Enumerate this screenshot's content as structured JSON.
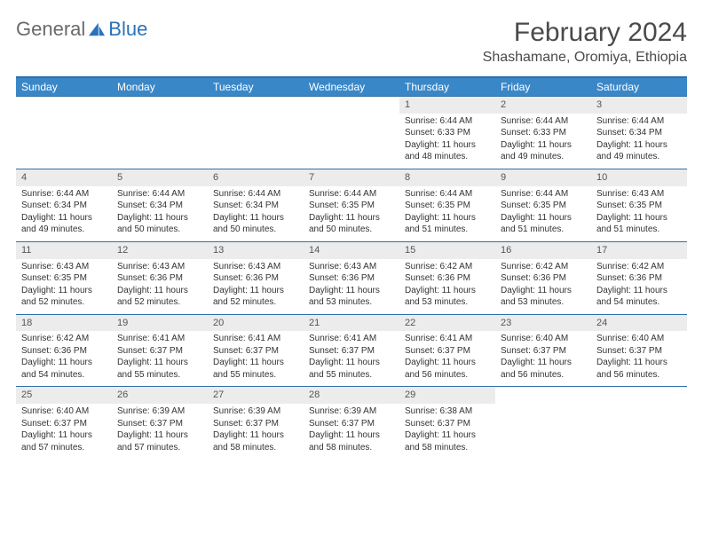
{
  "brand": {
    "part1": "General",
    "part2": "Blue"
  },
  "title": "February 2024",
  "location": "Shashamane, Oromiya, Ethiopia",
  "colors": {
    "header_bg": "#3a87c8",
    "header_text": "#ffffff",
    "rule": "#2e6fa8",
    "daynum_bg": "#ececec",
    "text": "#333333",
    "brand_gray": "#6a6a6a",
    "brand_blue": "#2a73b8"
  },
  "typography": {
    "title_fontsize": 30,
    "location_fontsize": 16,
    "dayhead_fontsize": 12,
    "daynum_fontsize": 11,
    "cell_fontsize": 10
  },
  "day_names": [
    "Sunday",
    "Monday",
    "Tuesday",
    "Wednesday",
    "Thursday",
    "Friday",
    "Saturday"
  ],
  "weeks": [
    [
      null,
      null,
      null,
      null,
      {
        "n": "1",
        "sr": "Sunrise: 6:44 AM",
        "ss": "Sunset: 6:33 PM",
        "dl": "Daylight: 11 hours and 48 minutes."
      },
      {
        "n": "2",
        "sr": "Sunrise: 6:44 AM",
        "ss": "Sunset: 6:33 PM",
        "dl": "Daylight: 11 hours and 49 minutes."
      },
      {
        "n": "3",
        "sr": "Sunrise: 6:44 AM",
        "ss": "Sunset: 6:34 PM",
        "dl": "Daylight: 11 hours and 49 minutes."
      }
    ],
    [
      {
        "n": "4",
        "sr": "Sunrise: 6:44 AM",
        "ss": "Sunset: 6:34 PM",
        "dl": "Daylight: 11 hours and 49 minutes."
      },
      {
        "n": "5",
        "sr": "Sunrise: 6:44 AM",
        "ss": "Sunset: 6:34 PM",
        "dl": "Daylight: 11 hours and 50 minutes."
      },
      {
        "n": "6",
        "sr": "Sunrise: 6:44 AM",
        "ss": "Sunset: 6:34 PM",
        "dl": "Daylight: 11 hours and 50 minutes."
      },
      {
        "n": "7",
        "sr": "Sunrise: 6:44 AM",
        "ss": "Sunset: 6:35 PM",
        "dl": "Daylight: 11 hours and 50 minutes."
      },
      {
        "n": "8",
        "sr": "Sunrise: 6:44 AM",
        "ss": "Sunset: 6:35 PM",
        "dl": "Daylight: 11 hours and 51 minutes."
      },
      {
        "n": "9",
        "sr": "Sunrise: 6:44 AM",
        "ss": "Sunset: 6:35 PM",
        "dl": "Daylight: 11 hours and 51 minutes."
      },
      {
        "n": "10",
        "sr": "Sunrise: 6:43 AM",
        "ss": "Sunset: 6:35 PM",
        "dl": "Daylight: 11 hours and 51 minutes."
      }
    ],
    [
      {
        "n": "11",
        "sr": "Sunrise: 6:43 AM",
        "ss": "Sunset: 6:35 PM",
        "dl": "Daylight: 11 hours and 52 minutes."
      },
      {
        "n": "12",
        "sr": "Sunrise: 6:43 AM",
        "ss": "Sunset: 6:36 PM",
        "dl": "Daylight: 11 hours and 52 minutes."
      },
      {
        "n": "13",
        "sr": "Sunrise: 6:43 AM",
        "ss": "Sunset: 6:36 PM",
        "dl": "Daylight: 11 hours and 52 minutes."
      },
      {
        "n": "14",
        "sr": "Sunrise: 6:43 AM",
        "ss": "Sunset: 6:36 PM",
        "dl": "Daylight: 11 hours and 53 minutes."
      },
      {
        "n": "15",
        "sr": "Sunrise: 6:42 AM",
        "ss": "Sunset: 6:36 PM",
        "dl": "Daylight: 11 hours and 53 minutes."
      },
      {
        "n": "16",
        "sr": "Sunrise: 6:42 AM",
        "ss": "Sunset: 6:36 PM",
        "dl": "Daylight: 11 hours and 53 minutes."
      },
      {
        "n": "17",
        "sr": "Sunrise: 6:42 AM",
        "ss": "Sunset: 6:36 PM",
        "dl": "Daylight: 11 hours and 54 minutes."
      }
    ],
    [
      {
        "n": "18",
        "sr": "Sunrise: 6:42 AM",
        "ss": "Sunset: 6:36 PM",
        "dl": "Daylight: 11 hours and 54 minutes."
      },
      {
        "n": "19",
        "sr": "Sunrise: 6:41 AM",
        "ss": "Sunset: 6:37 PM",
        "dl": "Daylight: 11 hours and 55 minutes."
      },
      {
        "n": "20",
        "sr": "Sunrise: 6:41 AM",
        "ss": "Sunset: 6:37 PM",
        "dl": "Daylight: 11 hours and 55 minutes."
      },
      {
        "n": "21",
        "sr": "Sunrise: 6:41 AM",
        "ss": "Sunset: 6:37 PM",
        "dl": "Daylight: 11 hours and 55 minutes."
      },
      {
        "n": "22",
        "sr": "Sunrise: 6:41 AM",
        "ss": "Sunset: 6:37 PM",
        "dl": "Daylight: 11 hours and 56 minutes."
      },
      {
        "n": "23",
        "sr": "Sunrise: 6:40 AM",
        "ss": "Sunset: 6:37 PM",
        "dl": "Daylight: 11 hours and 56 minutes."
      },
      {
        "n": "24",
        "sr": "Sunrise: 6:40 AM",
        "ss": "Sunset: 6:37 PM",
        "dl": "Daylight: 11 hours and 56 minutes."
      }
    ],
    [
      {
        "n": "25",
        "sr": "Sunrise: 6:40 AM",
        "ss": "Sunset: 6:37 PM",
        "dl": "Daylight: 11 hours and 57 minutes."
      },
      {
        "n": "26",
        "sr": "Sunrise: 6:39 AM",
        "ss": "Sunset: 6:37 PM",
        "dl": "Daylight: 11 hours and 57 minutes."
      },
      {
        "n": "27",
        "sr": "Sunrise: 6:39 AM",
        "ss": "Sunset: 6:37 PM",
        "dl": "Daylight: 11 hours and 58 minutes."
      },
      {
        "n": "28",
        "sr": "Sunrise: 6:39 AM",
        "ss": "Sunset: 6:37 PM",
        "dl": "Daylight: 11 hours and 58 minutes."
      },
      {
        "n": "29",
        "sr": "Sunrise: 6:38 AM",
        "ss": "Sunset: 6:37 PM",
        "dl": "Daylight: 11 hours and 58 minutes."
      },
      null,
      null
    ]
  ]
}
